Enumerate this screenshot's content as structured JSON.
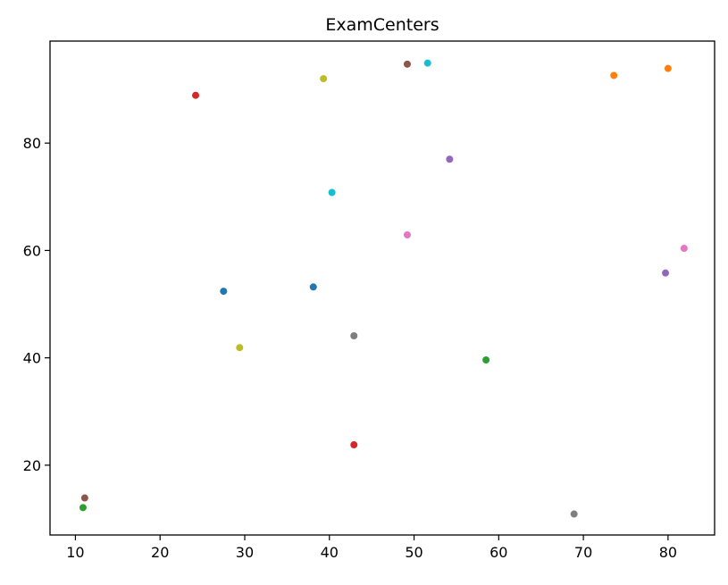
{
  "chart_data": {
    "type": "scatter",
    "title": "ExamCenters",
    "xlabel": "",
    "ylabel": "",
    "xlim": [
      7,
      85.5
    ],
    "ylim": [
      7,
      99
    ],
    "xticks": [
      10,
      20,
      30,
      40,
      50,
      60,
      70,
      80
    ],
    "yticks": [
      20,
      40,
      60,
      80
    ],
    "grid": false,
    "legend": "none",
    "points": [
      {
        "x": 27.5,
        "y": 52.4,
        "color": "#1f77b4"
      },
      {
        "x": 38.1,
        "y": 53.2,
        "color": "#1f77b4"
      },
      {
        "x": 73.6,
        "y": 92.6,
        "color": "#ff7f0e"
      },
      {
        "x": 80.0,
        "y": 93.9,
        "color": "#ff7f0e"
      },
      {
        "x": 10.9,
        "y": 12.1,
        "color": "#2ca02c"
      },
      {
        "x": 58.5,
        "y": 39.6,
        "color": "#2ca02c"
      },
      {
        "x": 24.2,
        "y": 88.9,
        "color": "#d62728"
      },
      {
        "x": 42.9,
        "y": 23.8,
        "color": "#d62728"
      },
      {
        "x": 54.2,
        "y": 77.0,
        "color": "#9467bd"
      },
      {
        "x": 79.7,
        "y": 55.8,
        "color": "#9467bd"
      },
      {
        "x": 11.1,
        "y": 13.9,
        "color": "#8c564b"
      },
      {
        "x": 49.2,
        "y": 94.7,
        "color": "#8c564b"
      },
      {
        "x": 49.2,
        "y": 62.9,
        "color": "#e377c2"
      },
      {
        "x": 81.9,
        "y": 60.4,
        "color": "#e377c2"
      },
      {
        "x": 42.9,
        "y": 44.1,
        "color": "#7f7f7f"
      },
      {
        "x": 68.9,
        "y": 10.9,
        "color": "#7f7f7f"
      },
      {
        "x": 29.4,
        "y": 41.9,
        "color": "#bcbd22"
      },
      {
        "x": 39.3,
        "y": 92.0,
        "color": "#bcbd22"
      },
      {
        "x": 40.3,
        "y": 70.8,
        "color": "#17becf"
      },
      {
        "x": 51.6,
        "y": 94.9,
        "color": "#17becf"
      }
    ]
  }
}
